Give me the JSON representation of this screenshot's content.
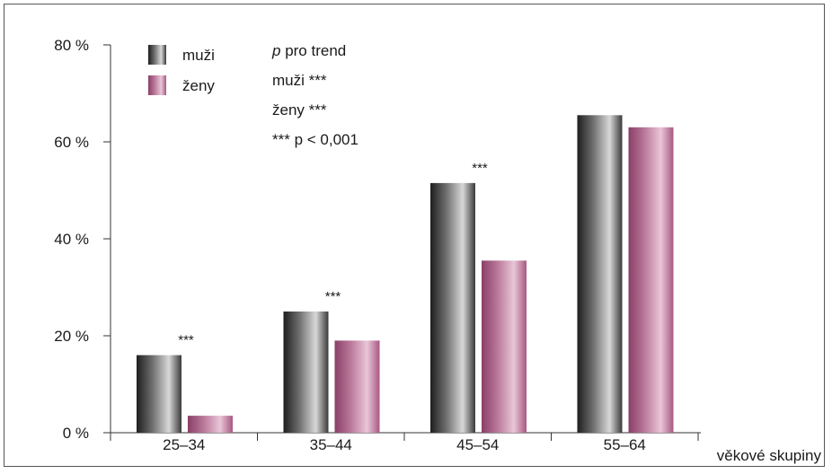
{
  "chart_data": {
    "type": "bar",
    "title": "",
    "xlabel": "věkové skupiny",
    "ylabel": "",
    "categories": [
      "25–34",
      "35–44",
      "45–54",
      "55–64"
    ],
    "ylim": [
      0,
      80
    ],
    "yticks": [
      0,
      20,
      40,
      60,
      80
    ],
    "ytick_labels": [
      "0 %",
      "20 %",
      "40 %",
      "60 %",
      "80 %"
    ],
    "series": [
      {
        "name": "muži",
        "values": [
          16,
          25,
          51.5,
          65.5
        ],
        "color": "#4a4a4a"
      },
      {
        "name": "ženy",
        "values": [
          3.5,
          19,
          35.5,
          63
        ],
        "color": "#b5698f"
      }
    ],
    "significance_marks": [
      "***",
      "***",
      "***",
      ""
    ],
    "annotation": {
      "p_prefix": "p",
      "p_rest": " pro trend",
      "line_men": "muži ***",
      "line_women": "ženy ***",
      "line_threshold": "*** p < 0,001"
    },
    "grid": false,
    "legend_position": "top-left"
  }
}
